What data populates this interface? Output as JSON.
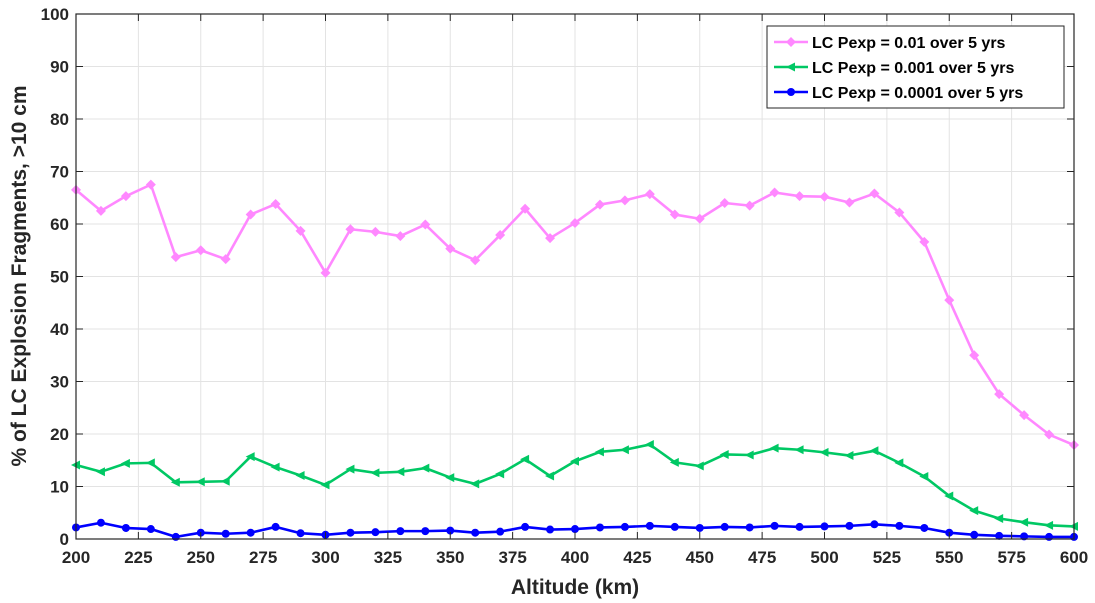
{
  "chart_data": {
    "type": "line",
    "title": "",
    "xlabel": "Altitude (km)",
    "ylabel": "% of LC Explosion Fragments, >10 cm",
    "xlim": [
      200,
      600
    ],
    "ylim": [
      0,
      100
    ],
    "grid": true,
    "legend_position": "top-right",
    "x_ticks": [
      200,
      225,
      250,
      275,
      300,
      325,
      350,
      375,
      400,
      425,
      450,
      475,
      500,
      525,
      550,
      575,
      600
    ],
    "y_ticks": [
      0,
      10,
      20,
      30,
      40,
      50,
      60,
      70,
      80,
      90,
      100
    ],
    "x": [
      200,
      210,
      220,
      230,
      240,
      250,
      260,
      270,
      280,
      290,
      300,
      310,
      320,
      330,
      340,
      350,
      360,
      370,
      380,
      390,
      400,
      410,
      420,
      430,
      440,
      450,
      460,
      470,
      480,
      490,
      500,
      510,
      520,
      530,
      540,
      550,
      560,
      570,
      580,
      590,
      600
    ],
    "series": [
      {
        "name": "LC Pexp = 0.01 over 5 yrs",
        "color": "#ff88ff",
        "marker": "diamond",
        "values": [
          66.5,
          62.5,
          65.3,
          67.5,
          53.7,
          55.0,
          53.3,
          61.8,
          63.8,
          58.7,
          50.7,
          59.0,
          58.5,
          57.7,
          59.9,
          55.3,
          53.1,
          57.9,
          62.9,
          57.3,
          60.2,
          63.7,
          64.5,
          65.7,
          61.8,
          61.0,
          64.0,
          63.5,
          66.0,
          65.3,
          65.2,
          64.1,
          65.8,
          62.2,
          56.6,
          45.5,
          35.0,
          27.6,
          23.6,
          19.9,
          17.9
        ]
      },
      {
        "name": "LC Pexp = 0.001 over 5 yrs",
        "color": "#00c864",
        "marker": "triangle-left",
        "values": [
          14.1,
          12.8,
          14.4,
          14.5,
          10.8,
          10.9,
          11.0,
          15.7,
          13.7,
          12.1,
          10.3,
          13.3,
          12.6,
          12.8,
          13.5,
          11.7,
          10.5,
          12.4,
          15.2,
          12.0,
          14.8,
          16.6,
          17.0,
          18.0,
          14.6,
          13.9,
          16.1,
          16.0,
          17.3,
          17.0,
          16.5,
          15.9,
          16.8,
          14.5,
          11.9,
          8.2,
          5.4,
          3.9,
          3.2,
          2.6,
          2.4
        ]
      },
      {
        "name": "LC Pexp = 0.0001 over 5 yrs",
        "color": "#0000ff",
        "marker": "circle",
        "values": [
          2.2,
          3.1,
          2.1,
          1.9,
          0.4,
          1.2,
          1.0,
          1.2,
          2.3,
          1.1,
          0.8,
          1.2,
          1.3,
          1.5,
          1.5,
          1.6,
          1.2,
          1.4,
          2.3,
          1.8,
          1.9,
          2.2,
          2.3,
          2.5,
          2.3,
          2.1,
          2.3,
          2.2,
          2.5,
          2.3,
          2.4,
          2.5,
          2.8,
          2.5,
          2.1,
          1.2,
          0.8,
          0.6,
          0.5,
          0.4,
          0.4
        ]
      }
    ]
  }
}
